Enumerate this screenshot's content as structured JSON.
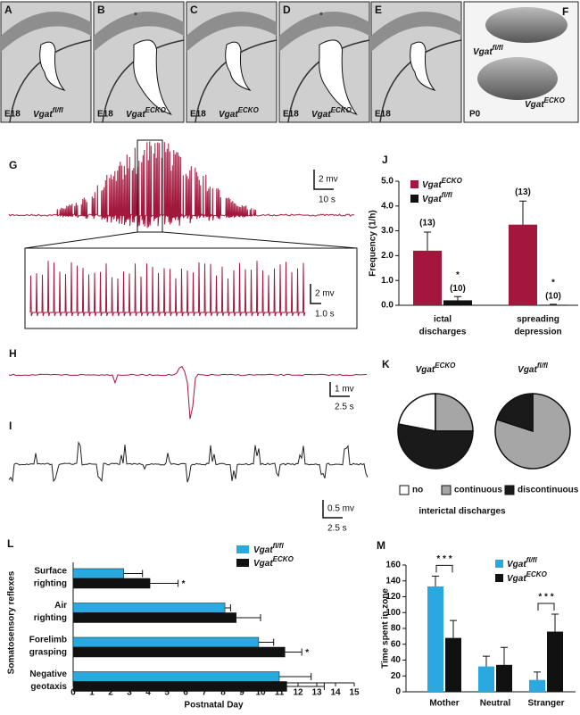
{
  "histology": [
    {
      "letter": "A",
      "age": "E18",
      "genotype": "Vgat",
      "sup": "fl/fl"
    },
    {
      "letter": "B",
      "age": "E18",
      "genotype": "Vgat",
      "sup": "ECKO"
    },
    {
      "letter": "C",
      "age": "E18",
      "genotype": "Vgat",
      "sup": "ECKO"
    },
    {
      "letter": "D",
      "age": "E18",
      "genotype": "Vgat",
      "sup": "ECKO"
    },
    {
      "letter": "E",
      "age": "E18"
    }
  ],
  "photo": {
    "letter": "F",
    "age": "P0",
    "labels": [
      {
        "text": "Vgat",
        "sup": "fl/fl"
      },
      {
        "text": "Vgat",
        "sup": "ECKO"
      }
    ]
  },
  "traces": {
    "G": {
      "letter": "G",
      "scale": [
        "2 mv",
        "10 s"
      ],
      "inset_scale": [
        "2 mv",
        "1.0 s"
      ]
    },
    "H": {
      "letter": "H",
      "scale": [
        "1 mv",
        "2.5 s"
      ]
    },
    "I": {
      "letter": "I",
      "scale": [
        "0.5 mv",
        "2.5 s"
      ]
    }
  },
  "chart_data": [
    {
      "type": "bar",
      "panel": "J",
      "y_label": "Frequency (1/h)",
      "categories": [
        [
          "ictal",
          "discharges"
        ],
        [
          "spreading",
          "depression"
        ]
      ],
      "series": [
        {
          "name": "Vgat",
          "sup": "ECKO",
          "color": "#a3173c",
          "values": [
            2.2,
            3.25
          ],
          "errors": [
            0.75,
            0.95
          ],
          "n_labels": [
            "(13)",
            "(13)"
          ]
        },
        {
          "name": "Vgat",
          "sup": "fl/fl",
          "color": "#111111",
          "values": [
            0.2,
            0.02
          ],
          "errors": [
            0.15,
            0.02
          ],
          "n_labels": [
            "(10)",
            "(10)"
          ],
          "marks": [
            "*",
            "*"
          ]
        }
      ],
      "ylim": [
        0,
        5
      ],
      "yticks": [
        {
          "value": 0,
          "label": "0.0"
        },
        {
          "value": 1,
          "label": "1.0"
        },
        {
          "value": 2,
          "label": "2.0"
        },
        {
          "value": 3,
          "label": "3.0"
        },
        {
          "value": 4,
          "label": "4.0"
        },
        {
          "value": 5,
          "label": "5.0"
        }
      ]
    },
    {
      "type": "pie",
      "panel": "K",
      "categories": [
        "no",
        "continuous",
        "discontinuous"
      ],
      "colors": [
        "#ffffff",
        "#a6a6a6",
        "#1a1a1a"
      ],
      "series": [
        {
          "name": "Vgat",
          "sup": "ECKO",
          "values": [
            22,
            25,
            53
          ]
        },
        {
          "name": "Vgat",
          "sup": "fl/fl",
          "values": [
            0,
            80,
            20
          ]
        }
      ],
      "caption": "interictal discharges"
    },
    {
      "type": "hbar",
      "panel": "L",
      "x_label": "Postnatal Day",
      "y_label": "Somatosensory reflexes",
      "categories": [
        [
          "Surface",
          "righting"
        ],
        [
          "Air",
          "righting"
        ],
        [
          "Forelimb",
          "grasping"
        ],
        [
          "Negative",
          "geotaxis"
        ]
      ],
      "series": [
        {
          "name": "Vgat",
          "sup": "fl/fl",
          "color": "#29a9e0",
          "values": [
            2.7,
            8.1,
            9.9,
            11.0
          ],
          "errors": [
            1.0,
            0.3,
            0.8,
            1.7
          ]
        },
        {
          "name": "Vgat",
          "sup": "ECKO",
          "color": "#111111",
          "values": [
            4.1,
            8.7,
            11.3,
            11.4
          ],
          "errors": [
            1.5,
            1.3,
            0.9,
            2.0
          ],
          "marks": [
            "*",
            null,
            "*",
            null
          ]
        }
      ],
      "xlim": [
        0,
        15
      ],
      "xticks": [
        0,
        1,
        2,
        3,
        4,
        5,
        6,
        7,
        8,
        9,
        10,
        11,
        12,
        13,
        14,
        15
      ]
    },
    {
      "type": "bar",
      "panel": "M",
      "y_label": "Time spent in zone",
      "categories": [
        "Mother",
        "Neutral",
        "Stranger"
      ],
      "series": [
        {
          "name": "Vgat",
          "sup": "fl/fl",
          "color": "#29a9e0",
          "values": [
            133,
            32,
            15
          ],
          "errors": [
            13,
            13,
            10
          ]
        },
        {
          "name": "Vgat",
          "sup": "ECKO",
          "color": "#111111",
          "values": [
            68,
            34,
            76
          ],
          "errors": [
            22,
            22,
            22
          ]
        }
      ],
      "annotations": [
        {
          "text": "* * *",
          "category": 0
        },
        {
          "text": "* * *",
          "category": 2
        }
      ],
      "ylim": [
        0,
        160
      ],
      "yticks": [
        0,
        20,
        40,
        60,
        80,
        100,
        120,
        140,
        160
      ]
    }
  ]
}
